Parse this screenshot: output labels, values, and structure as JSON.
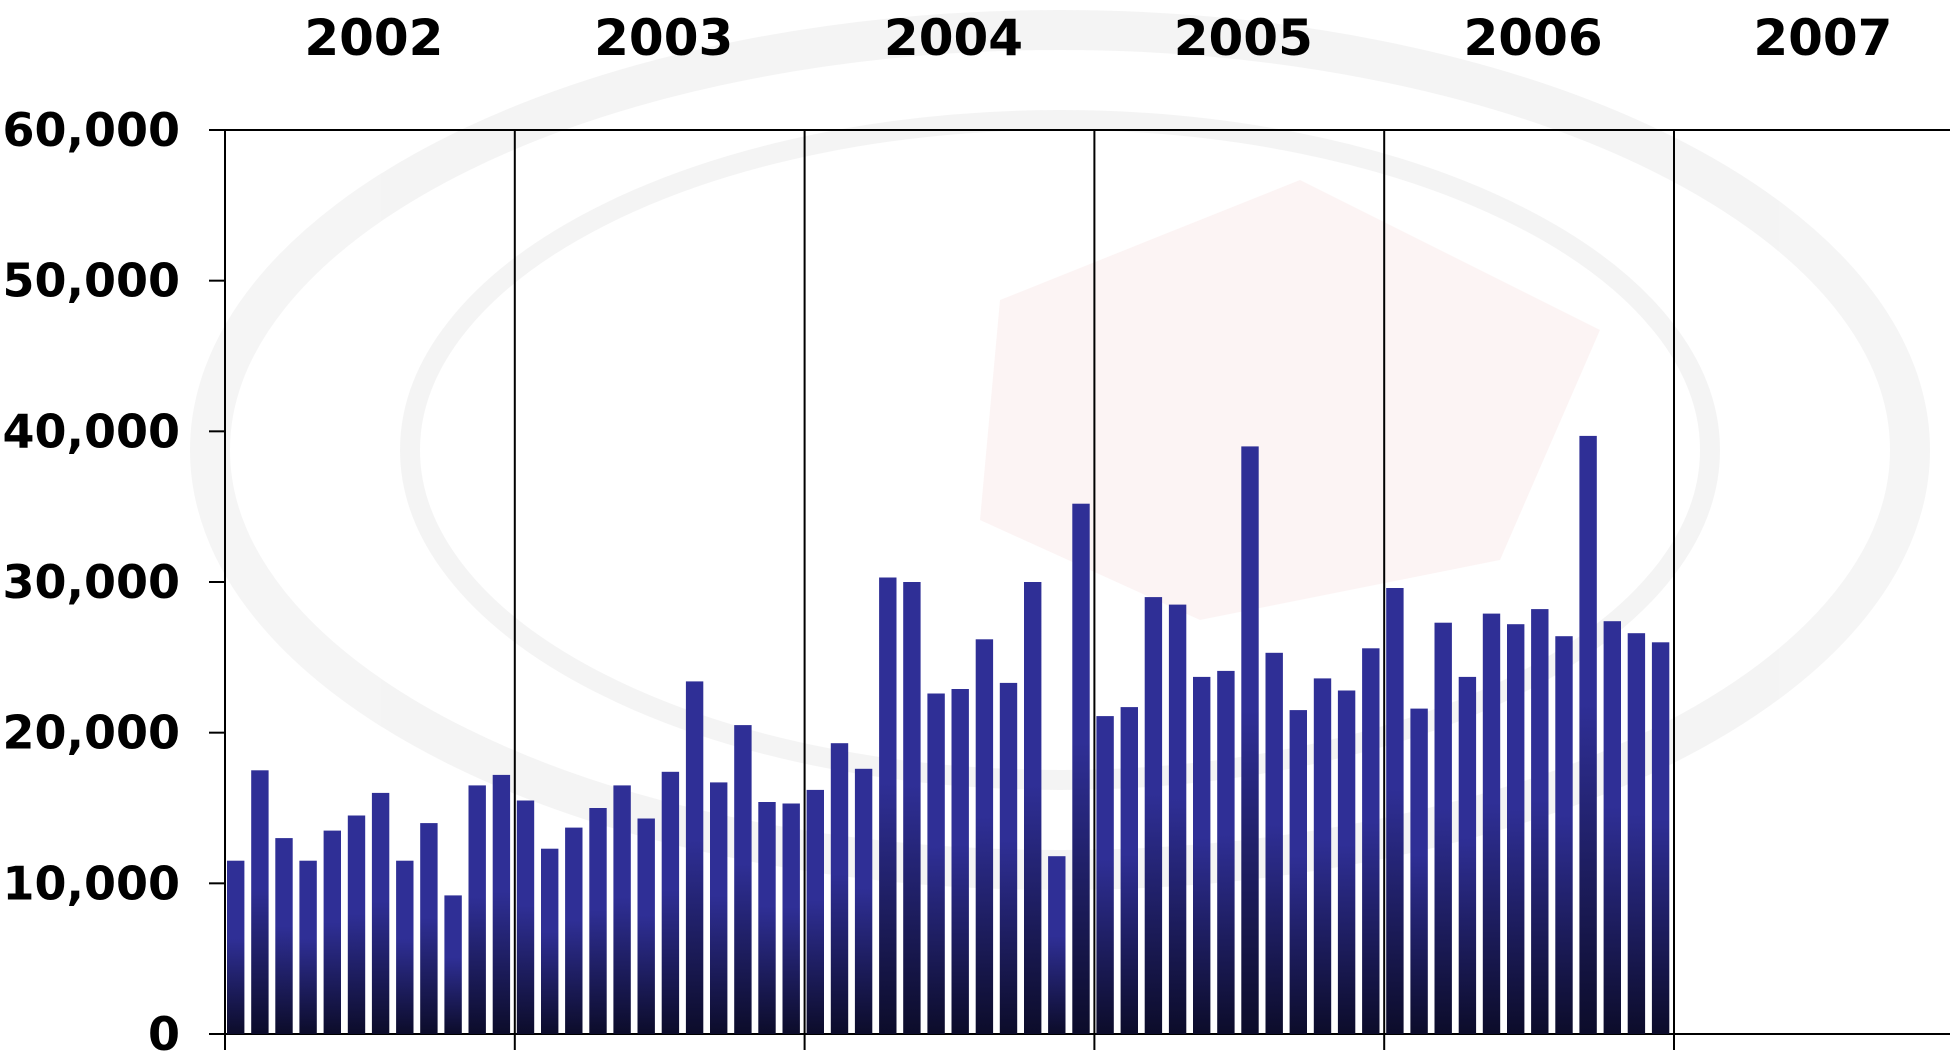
{
  "chart_data": {
    "type": "bar",
    "title": "",
    "xlabel": "",
    "ylabel": "",
    "ylim": [
      0,
      60000
    ],
    "yticks": [
      0,
      10000,
      20000,
      30000,
      40000,
      50000,
      60000
    ],
    "ytick_labels": [
      "0",
      "10,000",
      "20,000",
      "30,000",
      "40,000",
      "50,000",
      "60,000"
    ],
    "years": [
      "2002",
      "2003",
      "2004",
      "2005",
      "2006",
      "2007"
    ],
    "months_per_year": 12,
    "bar_color": "#2f2f96",
    "bar_color_base": "#0c0c2a",
    "grid": "vertical year separators",
    "legend": "none",
    "series": [
      {
        "values": [
          11500,
          17500,
          13000,
          11500,
          13500,
          14500,
          16000,
          11500,
          14000,
          9200,
          16500,
          17200,
          15500,
          12300,
          13700,
          15000,
          16500,
          14300,
          17400,
          23400,
          16700,
          20500,
          15400,
          15300,
          16200,
          19300,
          17600,
          30300,
          30000,
          22600,
          22900,
          26200,
          23300,
          30000,
          11800,
          35200,
          21100,
          21700,
          29000,
          28500,
          23700,
          24100,
          39000,
          25300,
          21500,
          23600,
          22800,
          25600,
          29600,
          21600,
          27300,
          23700,
          27900,
          27200,
          28200,
          26400,
          39700,
          27400,
          26600,
          26000
        ]
      }
    ]
  }
}
